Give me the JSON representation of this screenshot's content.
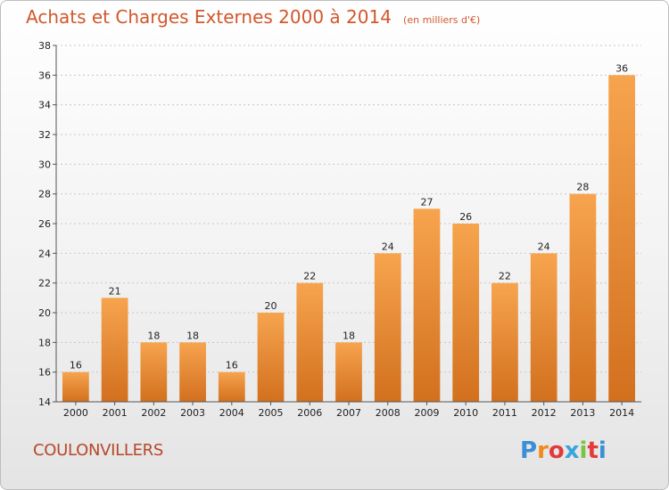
{
  "title": "Achats et Charges Externes 2000 à 2014",
  "subtitle": "(en milliers d'€)",
  "commune": "COULONVILLERS",
  "logo": {
    "letters": [
      "P",
      "r",
      "o",
      "x",
      "i",
      "t",
      "i"
    ],
    "colors": [
      "#3a8fd6",
      "#f08a1c",
      "#e23b3b",
      "#3aa5dc",
      "#7cc243",
      "#e23b3b",
      "#3a8fd6"
    ]
  },
  "colors": {
    "bar_top": "#f7a44e",
    "bar_bottom": "#d2701e",
    "grid": "#c8c8c8",
    "title": "#d2572c"
  },
  "chart_data": {
    "type": "bar",
    "categories": [
      "2000",
      "2001",
      "2002",
      "2003",
      "2004",
      "2005",
      "2006",
      "2007",
      "2008",
      "2009",
      "2010",
      "2011",
      "2012",
      "2013",
      "2014"
    ],
    "values": [
      16,
      21,
      18,
      18,
      16,
      20,
      22,
      18,
      24,
      27,
      26,
      22,
      24,
      28,
      36
    ],
    "ylim": [
      14,
      38
    ],
    "yticks": [
      14,
      16,
      18,
      20,
      22,
      24,
      26,
      28,
      30,
      32,
      34,
      36,
      38
    ],
    "grid": "horizontal dotted",
    "xlabel": "",
    "ylabel": ""
  }
}
